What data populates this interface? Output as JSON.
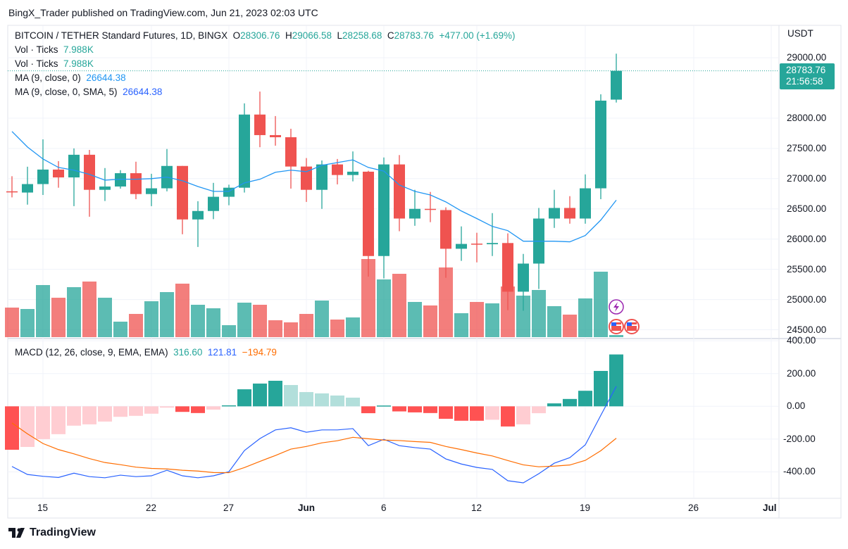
{
  "header": {
    "published": "BingX_Trader published on TradingView.com, Jun 21, 2023 02:03 UTC"
  },
  "legend": {
    "symbol": "BITCOIN / TETHER Standard Futures, 1D, BINGX",
    "o_label": "O",
    "o": "28306.76",
    "h_label": "H",
    "h": "29066.58",
    "l_label": "L",
    "l": "28258.68",
    "c_label": "C",
    "c": "28783.76",
    "change": "+477.00 (+1.69%)",
    "vol1_label": "Vol · Ticks",
    "vol1": "7.988K",
    "vol2_label": "Vol · Ticks",
    "vol2": "7.988K",
    "ma1_label": "MA (9, close, 0)",
    "ma1": "26644.38",
    "ma2_label": "MA (9, close, 0, SMA, 5)",
    "ma2": "26644.38",
    "macd_label": "MACD (12, 26, close, 9, EMA, EMA)",
    "macd_hist": "316.60",
    "macd_line": "121.81",
    "macd_signal": "−194.79"
  },
  "price_axis": {
    "currency": "USDT",
    "labels": [
      "29000.00",
      "28000.00",
      "27500.00",
      "27000.00",
      "26500.00",
      "26000.00",
      "25500.00",
      "25000.00",
      "24500.00"
    ],
    "last_price": "28783.76",
    "countdown": "21:56:58"
  },
  "macd_axis": {
    "labels": [
      "400.00",
      "200.00",
      "0.00",
      "-200.00",
      "-400.00"
    ]
  },
  "footer": {
    "brand": "TradingView"
  },
  "colors": {
    "up": "#26a69a",
    "down": "#ef5350",
    "ma": "#2196f3",
    "macd": "#2962ff",
    "signal": "#ff6d00",
    "hist_up_strong": "#26a69a",
    "hist_up_weak": "#b2dfdb",
    "hist_down_strong": "#ff5252",
    "hist_down_weak": "#ffcdd2"
  },
  "chart_data": [
    {
      "type": "candlestick",
      "title": "BITCOIN / TETHER Standard Futures, 1D, BINGX",
      "ylabel": "USDT",
      "ylim": [
        24400,
        29500
      ],
      "first_date": "2023-05-13",
      "x_ticks": [
        {
          "label": "15",
          "day": 2
        },
        {
          "label": "22",
          "day": 9
        },
        {
          "label": "27",
          "day": 14
        },
        {
          "label": "Jun",
          "day": 19
        },
        {
          "label": "6",
          "day": 24
        },
        {
          "label": "12",
          "day": 30
        },
        {
          "label": "19",
          "day": 37
        },
        {
          "label": "26",
          "day": 44
        },
        {
          "label": "Jul",
          "day": 49
        }
      ],
      "ohlc": [
        [
          26790,
          27040,
          26690,
          26780
        ],
        [
          26770,
          27197,
          26570,
          26910
        ],
        [
          26910,
          27650,
          26730,
          27150
        ],
        [
          27150,
          27290,
          26850,
          27020
        ],
        [
          27020,
          27500,
          26545,
          27395
        ],
        [
          27395,
          27475,
          26370,
          26815
        ],
        [
          26815,
          27175,
          26630,
          26870
        ],
        [
          26870,
          27140,
          26835,
          27090
        ],
        [
          27090,
          27280,
          26660,
          26745
        ],
        [
          26745,
          27080,
          26545,
          26840
        ],
        [
          26840,
          27490,
          26790,
          27210
        ],
        [
          27210,
          27210,
          26080,
          26325
        ],
        [
          26325,
          26627,
          25870,
          26465
        ],
        [
          26465,
          26930,
          26330,
          26700
        ],
        [
          26700,
          26900,
          26560,
          26850
        ],
        [
          26850,
          28245,
          26770,
          28060
        ],
        [
          28060,
          28440,
          27520,
          27720
        ],
        [
          27720,
          28035,
          27545,
          27685
        ],
        [
          27685,
          27825,
          26835,
          27200
        ],
        [
          27200,
          27340,
          26615,
          26815
        ],
        [
          26815,
          27300,
          26500,
          27235
        ],
        [
          27235,
          27325,
          26905,
          27060
        ],
        [
          27060,
          27450,
          26955,
          27115
        ],
        [
          27115,
          27130,
          25380,
          25720
        ],
        [
          25720,
          27350,
          25350,
          27235
        ],
        [
          27235,
          27390,
          26130,
          26340
        ],
        [
          26340,
          26815,
          26220,
          26500
        ],
        [
          26500,
          26780,
          26280,
          26490
        ],
        [
          26480,
          26525,
          25360,
          25840
        ],
        [
          25840,
          26210,
          25640,
          25920
        ],
        [
          25925,
          26105,
          25615,
          25915
        ],
        [
          25915,
          26430,
          25720,
          25935
        ],
        [
          25935,
          26095,
          24825,
          25130
        ],
        [
          25130,
          25755,
          24815,
          25595
        ],
        [
          25595,
          26515,
          25175,
          26340
        ],
        [
          26340,
          26815,
          26185,
          26515
        ],
        [
          26515,
          26710,
          26255,
          26340
        ],
        [
          26340,
          27070,
          26255,
          26840
        ],
        [
          26840,
          28395,
          26660,
          28290
        ],
        [
          28306.76,
          29066.58,
          28258.68,
          28783.76
        ]
      ],
      "volume_relative": [
        42,
        40,
        74,
        56,
        71,
        79,
        56,
        22,
        33,
        51,
        64,
        76,
        46,
        41,
        17,
        49,
        46,
        24,
        21,
        33,
        52,
        25,
        28,
        111,
        82,
        90,
        50,
        45,
        99,
        34,
        50,
        48,
        72,
        59,
        67,
        44,
        32,
        55,
        93,
        3
      ],
      "ma9": [
        27780,
        27523,
        27325,
        27185,
        27140,
        27070,
        26975,
        26990,
        26990,
        27000,
        27025,
        26965,
        26870,
        26790,
        26790,
        26930,
        26990,
        27105,
        27140,
        27115,
        27220,
        27265,
        27310,
        27185,
        27125,
        26895,
        26790,
        26730,
        26615,
        26465,
        26340,
        26210,
        26140,
        25965,
        25965,
        25965,
        25955,
        26060,
        26315,
        26644.38
      ]
    },
    {
      "type": "macd",
      "title": "MACD (12, 26, close, 9, EMA, EMA)",
      "ylim": [
        -480,
        420
      ],
      "histogram": [
        -265,
        -248,
        -200,
        -170,
        -118,
        -110,
        -93,
        -64,
        -58,
        -45,
        -8,
        -34,
        -41,
        -20,
        6,
        104,
        139,
        156,
        130,
        87,
        79,
        66,
        53,
        -42,
        5,
        -31,
        -37,
        -41,
        -76,
        -88,
        -88,
        -82,
        -123,
        -110,
        -42,
        18,
        45,
        95,
        216,
        316.6
      ],
      "macd": [
        -367,
        -416,
        -427,
        -434,
        -408,
        -429,
        -436,
        -420,
        -429,
        -424,
        -390,
        -424,
        -436,
        -424,
        -399,
        -270,
        -197,
        -144,
        -131,
        -158,
        -144,
        -144,
        -136,
        -240,
        -201,
        -240,
        -252,
        -261,
        -321,
        -352,
        -373,
        -385,
        -454,
        -467,
        -411,
        -347,
        -313,
        -235,
        -55,
        121.81
      ],
      "signal": [
        -102,
        -168,
        -227,
        -264,
        -290,
        -319,
        -343,
        -356,
        -371,
        -379,
        -382,
        -390,
        -395,
        -404,
        -405,
        -374,
        -336,
        -300,
        -261,
        -245,
        -223,
        -210,
        -189,
        -198,
        -206,
        -209,
        -215,
        -220,
        -245,
        -264,
        -285,
        -303,
        -331,
        -357,
        -369,
        -365,
        -358,
        -330,
        -271,
        -194.79
      ]
    }
  ]
}
